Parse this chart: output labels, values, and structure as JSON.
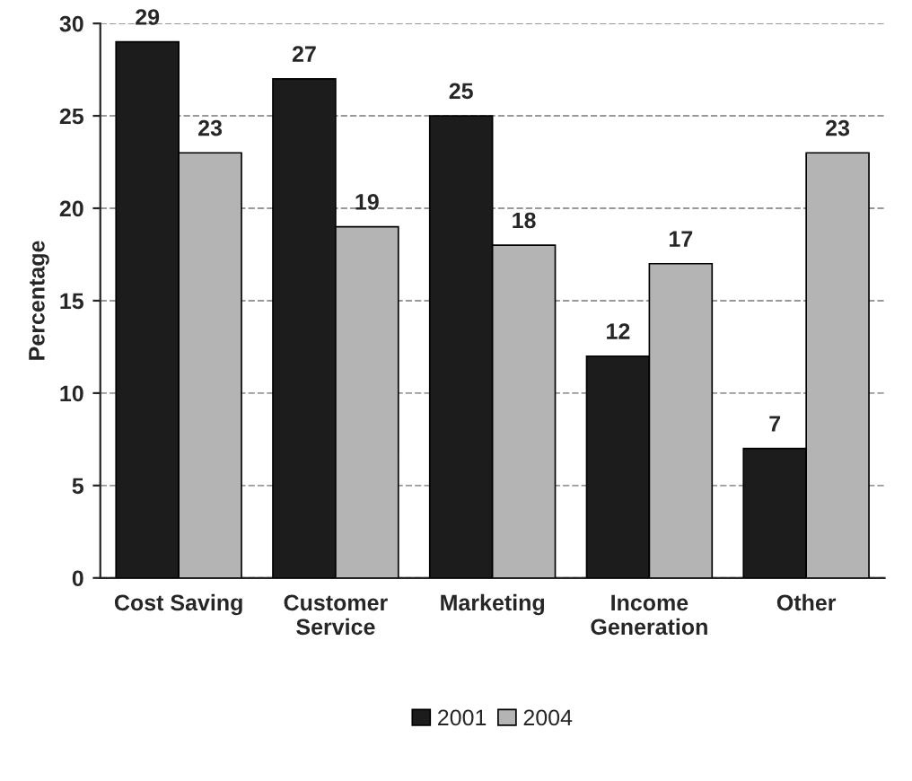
{
  "chart_data": {
    "type": "bar",
    "ylabel": "Percentage",
    "categories": [
      "Cost Saving",
      "Customer\nService",
      "Marketing",
      "Income\nGeneration",
      "Other"
    ],
    "series": [
      {
        "name": "2001",
        "color": "#1c1c1c",
        "values": [
          29,
          27,
          25,
          12,
          7
        ]
      },
      {
        "name": "2004",
        "color": "#b4b4b4",
        "values": [
          23,
          19,
          18,
          17,
          23
        ]
      }
    ],
    "ylim": [
      0,
      30
    ],
    "yticks": [
      0,
      5,
      10,
      15,
      20,
      25,
      30
    ],
    "grid": "y",
    "legend": "bottom",
    "data_labels": true
  }
}
